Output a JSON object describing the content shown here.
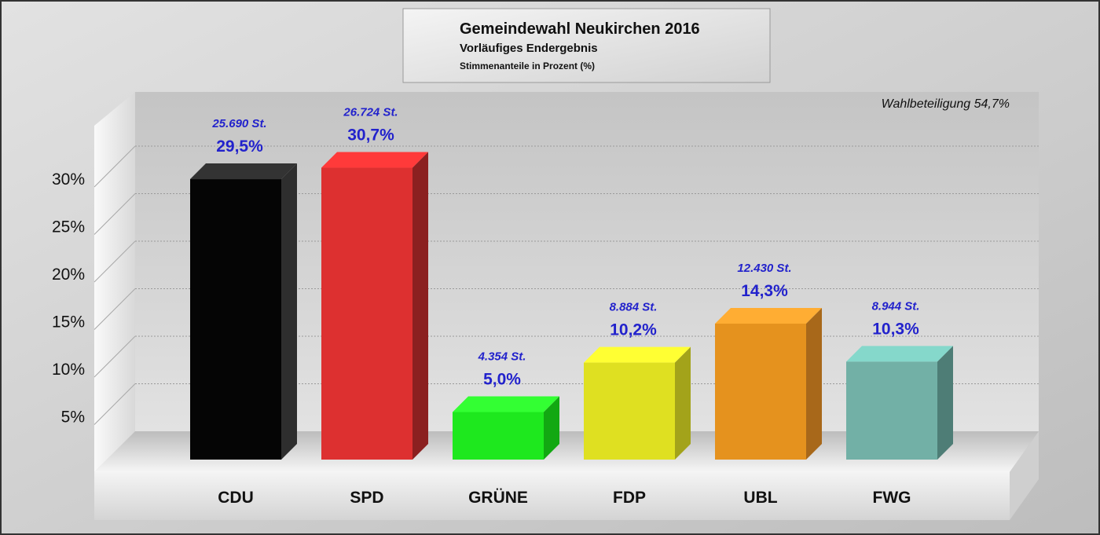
{
  "chart_data": {
    "type": "bar",
    "title": "Gemeindewahl Neukirchen 2016",
    "subtitle": "Vorläufiges Endergebnis",
    "subtitle2": "Stimmenanteile in Prozent (%)",
    "annotation": "Wahlbeteiligung 54,7%",
    "ylabel": "",
    "xlabel": "",
    "ylim": [
      0,
      35
    ],
    "yticks": [
      5,
      10,
      15,
      20,
      25,
      30
    ],
    "ytick_labels": [
      "5%",
      "10%",
      "15%",
      "20%",
      "25%",
      "30%"
    ],
    "categories": [
      "CDU",
      "SPD",
      "GRÜNE",
      "FDP",
      "UBL",
      "FWG"
    ],
    "values": [
      29.5,
      30.7,
      5.0,
      10.2,
      14.3,
      10.3
    ],
    "value_labels": [
      "29,5%",
      "30,7%",
      "5,0%",
      "10,2%",
      "14,3%",
      "10,3%"
    ],
    "votes_labels": [
      "25.690 St.",
      "26.724 St.",
      "4.354 St.",
      "8.884 St.",
      "12.430 St.",
      "8.944 St."
    ],
    "colors": [
      {
        "front": "#050505",
        "side": "#2e2e2e",
        "top": "#333333"
      },
      {
        "front": "#dd3030",
        "side": "#8b2020",
        "top": "#ff3a3a"
      },
      {
        "front": "#1ee81e",
        "side": "#12a812",
        "top": "#33ff33"
      },
      {
        "front": "#dfe021",
        "side": "#a3a31a",
        "top": "#ffff33"
      },
      {
        "front": "#e5921e",
        "side": "#a8681a",
        "top": "#ffad33"
      },
      {
        "front": "#72b0a6",
        "side": "#4e7d76",
        "top": "#85d8cb"
      }
    ],
    "label_color": "#2222cc"
  }
}
